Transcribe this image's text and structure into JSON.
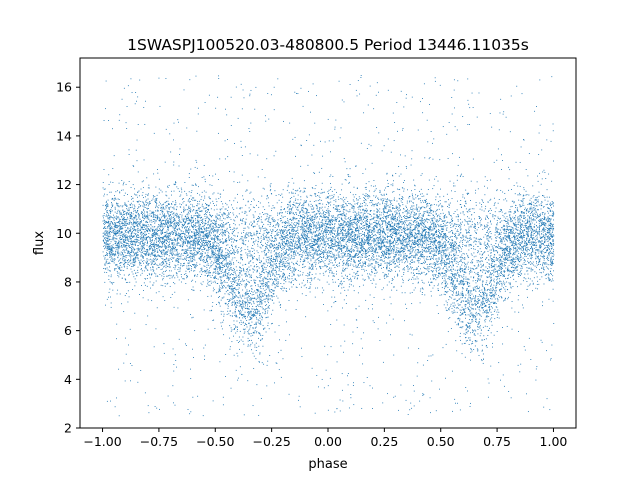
{
  "chart_data": {
    "type": "scatter",
    "title": "1SWASPJ100520.03-480800.5 Period 13446.11035s",
    "xlabel": "phase",
    "ylabel": "flux",
    "xlim": [
      -1.1,
      1.1
    ],
    "ylim": [
      2.0,
      17.2
    ],
    "x_ticks": [
      -1.0,
      -0.75,
      -0.5,
      -0.25,
      0.0,
      0.25,
      0.5,
      0.75,
      1.0
    ],
    "x_tick_labels": [
      "−1.00",
      "−0.75",
      "−0.50",
      "−0.25",
      "0.00",
      "0.25",
      "0.50",
      "0.75",
      "1.00"
    ],
    "y_ticks": [
      2,
      4,
      6,
      8,
      10,
      12,
      14,
      16
    ],
    "y_tick_labels": [
      "2",
      "4",
      "6",
      "8",
      "10",
      "12",
      "14",
      "16"
    ],
    "series": [
      {
        "color": "#1f77b4",
        "marker": "point",
        "phase_range": [
          -1.0,
          1.0
        ],
        "baseline_flux": 9.9,
        "baseline_spread": 0.9,
        "eclipses": [
          {
            "phase": -0.35,
            "min_flux": 7.0,
            "half_width": 0.22
          },
          {
            "phase": 0.65,
            "min_flux": 7.0,
            "half_width": 0.22
          }
        ],
        "outlier_flux_range": [
          2.5,
          16.5
        ]
      }
    ],
    "grid": false,
    "legend": "none"
  }
}
